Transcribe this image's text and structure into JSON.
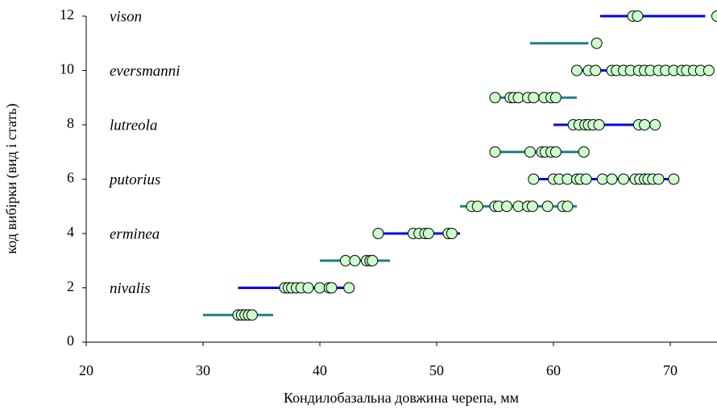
{
  "chart_data": {
    "type": "scatter",
    "x_label": "Кондилобазальна довжина черепа, мм",
    "y_label": "код вибірки (вид і стать)",
    "annotations": [
      "vison",
      "eversmanni",
      "lutreola",
      "putorius",
      "erminea",
      "nivalis"
    ],
    "xlim": [
      20,
      74
    ],
    "ylim": [
      0,
      12
    ],
    "xticks": [
      20,
      30,
      40,
      50,
      60,
      70
    ],
    "yticks": [
      0,
      2,
      4,
      6,
      8,
      10,
      12
    ],
    "marker_color": "#ccffcc",
    "groups": [
      {
        "y": 1,
        "color": "#1f8080",
        "range": [
          30,
          36
        ],
        "x": [
          33,
          33.3,
          33.6,
          33.9,
          34.2
        ]
      },
      {
        "y": 2,
        "color": "#0000ee",
        "range": [
          33,
          42.5
        ],
        "x": [
          37,
          37.3,
          37.6,
          38,
          38.4,
          39,
          40,
          40.8,
          41,
          42.5
        ]
      },
      {
        "y": 3,
        "color": "#1f8080",
        "range": [
          40,
          46
        ],
        "x": [
          42.2,
          43,
          44,
          44.3,
          44.5
        ]
      },
      {
        "y": 4,
        "color": "#0000ee",
        "range": [
          45,
          52
        ],
        "x": [
          45,
          48,
          48.5,
          49,
          49.3,
          51,
          51.3
        ]
      },
      {
        "y": 5,
        "color": "#1f8080",
        "range": [
          52,
          62
        ],
        "x": [
          53,
          53.5,
          55,
          55.3,
          56,
          57,
          57.8,
          58.2,
          59.5,
          60.8,
          61.2
        ]
      },
      {
        "y": 6,
        "color": "#0000ee",
        "range": [
          58,
          70.5
        ],
        "x": [
          58.3,
          60,
          60.5,
          61.2,
          62,
          62.3,
          62.8,
          64.2,
          65,
          66,
          67,
          67.4,
          67.8,
          68.1,
          68.5,
          69,
          70.3
        ]
      },
      {
        "y": 7,
        "color": "#1f8080",
        "range": [
          55,
          62.5
        ],
        "x": [
          55,
          58,
          59,
          59.3,
          59.8,
          60.2,
          62.6
        ]
      },
      {
        "y": 8,
        "color": "#0000ee",
        "range": [
          60,
          68.5
        ],
        "x": [
          61.7,
          62.2,
          62.7,
          63,
          63.4,
          63.9,
          67.3,
          67.8,
          68.7
        ]
      },
      {
        "y": 9,
        "color": "#1f8080",
        "range": [
          55,
          62
        ],
        "x": [
          55,
          56.3,
          56.6,
          57,
          57.8,
          58.3,
          59.2,
          59.8,
          60.2
        ]
      },
      {
        "y": 10,
        "color": "#0000ee",
        "range": [
          62,
          73.5
        ],
        "x": [
          62,
          63,
          63.6,
          65,
          65.4,
          66,
          66.6,
          67.3,
          67.8,
          68.3,
          69,
          69.6,
          70.3,
          71,
          71.4,
          72,
          72.6,
          73.3
        ]
      },
      {
        "y": 11,
        "color": "#1f8080",
        "range": [
          58,
          63
        ],
        "x": [
          63.7
        ]
      },
      {
        "y": 12,
        "color": "#0000ee",
        "range": [
          64,
          73
        ],
        "x": [
          66.8,
          67.2,
          74
        ]
      }
    ]
  }
}
